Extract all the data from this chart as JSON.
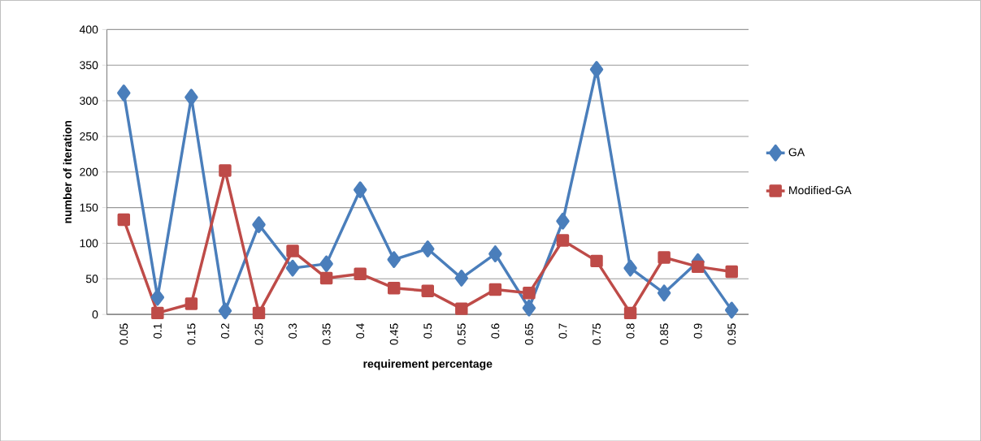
{
  "chart_data": {
    "type": "line",
    "xlabel": "requirement percentage",
    "ylabel": "number of iteration",
    "categories": [
      "0.05",
      "0.1",
      "0.15",
      "0.2",
      "0.25",
      "0.3",
      "0.35",
      "0.4",
      "0.45",
      "0.5",
      "0.55",
      "0.6",
      "0.65",
      "0.7",
      "0.75",
      "0.8",
      "0.85",
      "0.9",
      "0.95"
    ],
    "series": [
      {
        "name": "GA",
        "color": "#4a7ebb",
        "marker": "diamond",
        "values": [
          311,
          24,
          305,
          5,
          126,
          65,
          71,
          175,
          77,
          92,
          51,
          85,
          9,
          131,
          344,
          65,
          30,
          74,
          6
        ]
      },
      {
        "name": "Modified-GA",
        "color": "#be4b48",
        "marker": "square",
        "values": [
          133,
          2,
          15,
          202,
          2,
          89,
          51,
          57,
          37,
          33,
          8,
          35,
          30,
          104,
          75,
          2,
          80,
          67,
          60
        ]
      }
    ],
    "ylim": [
      0,
      400
    ],
    "yticks": [
      0,
      50,
      100,
      150,
      200,
      250,
      300,
      350,
      400
    ],
    "grid": "y",
    "legend": "right",
    "line_style": "solid"
  }
}
